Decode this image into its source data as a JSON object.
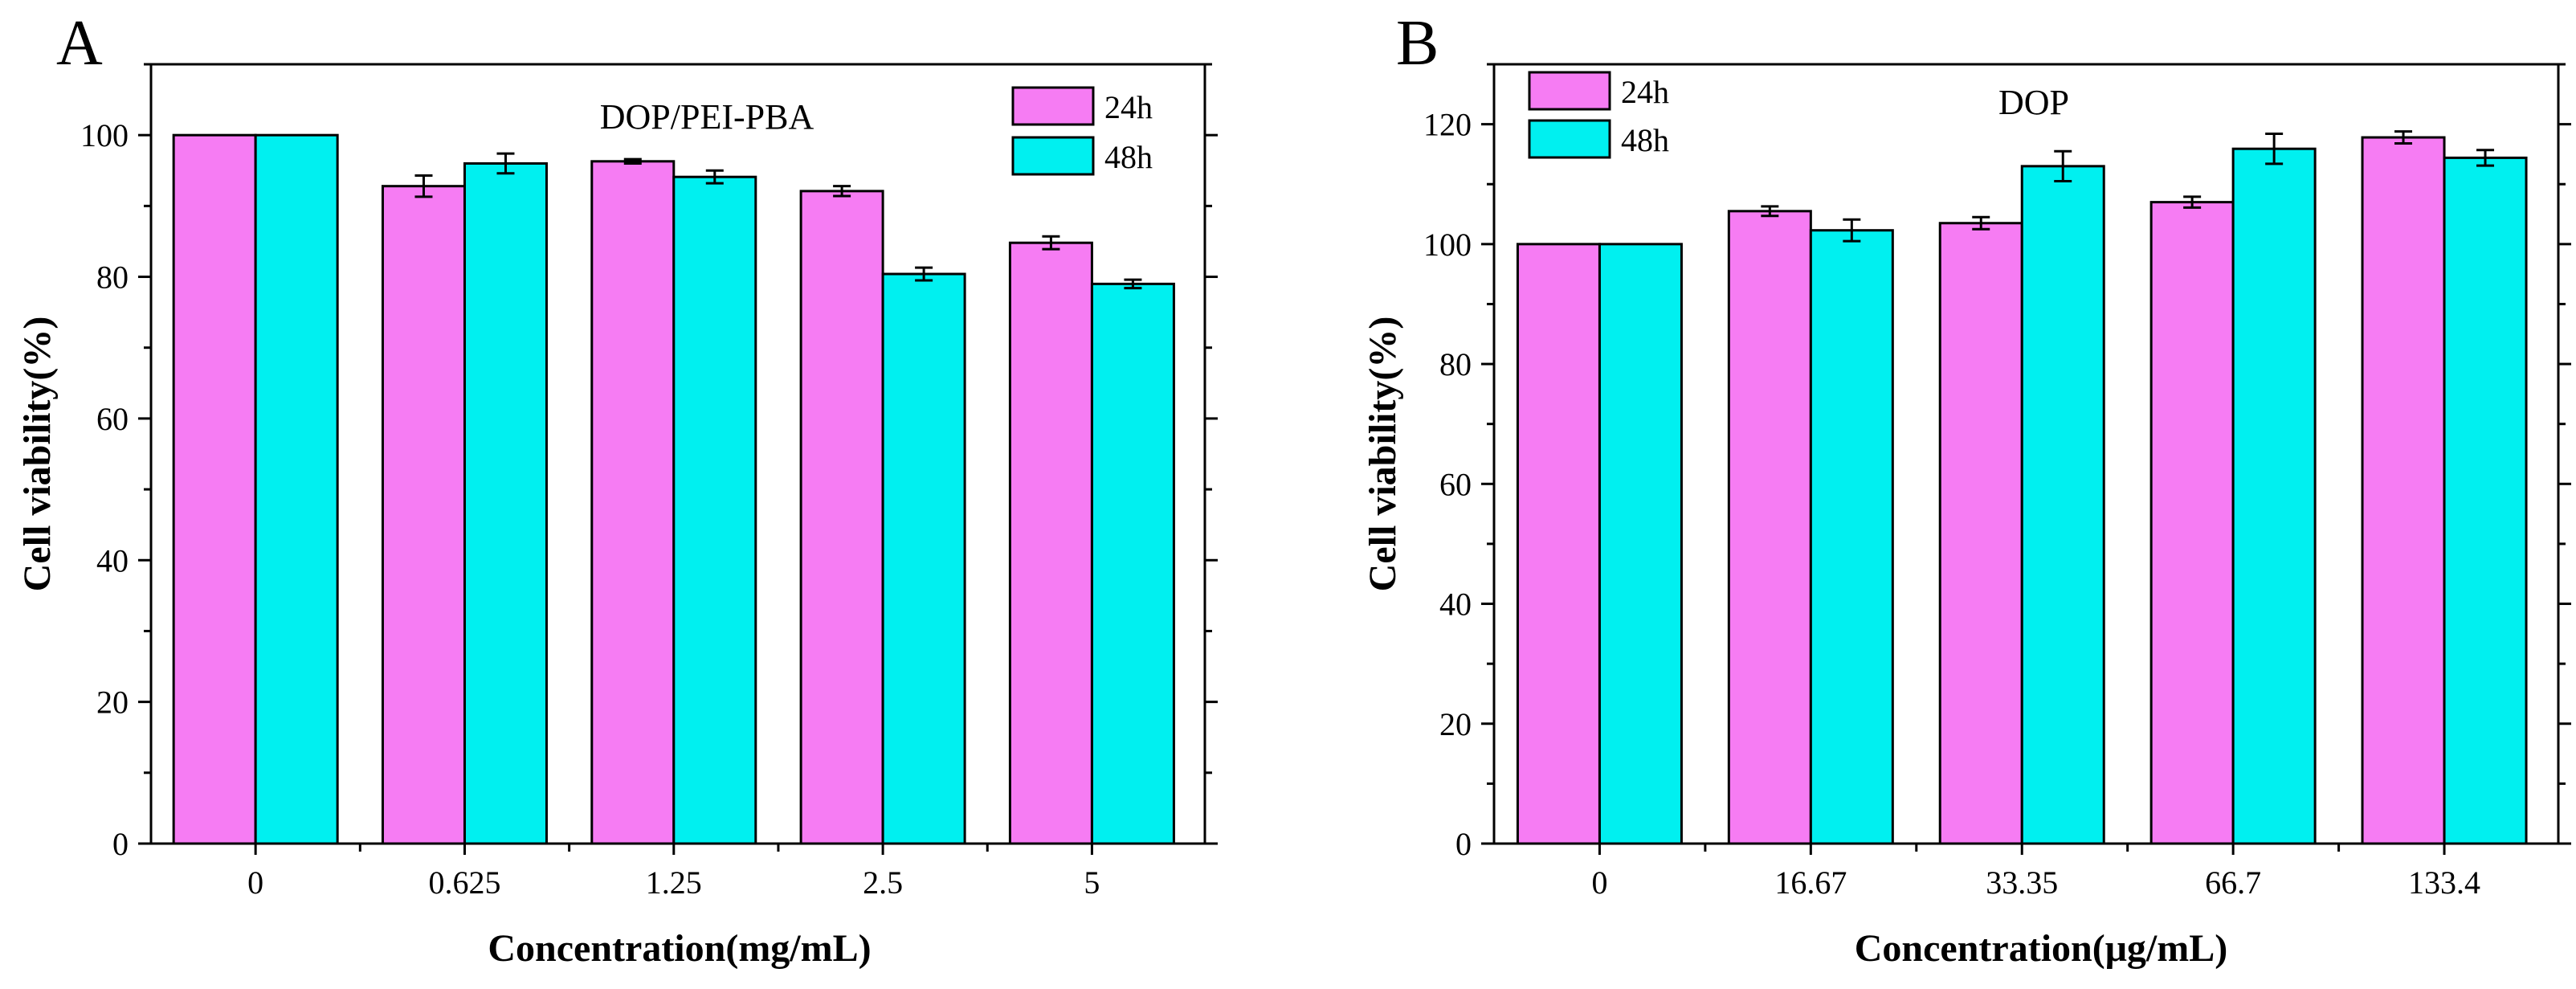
{
  "chart_data": [
    {
      "type": "bar",
      "panel": "A",
      "title": "DOP/PEI-PBA",
      "xlabel": "Concentration(mg/mL)",
      "ylabel": "Cell viability(%)",
      "categories": [
        "0",
        "0.625",
        "1.25",
        "2.5",
        "5"
      ],
      "ylim": [
        0,
        110
      ],
      "yticks": [
        0,
        20,
        40,
        60,
        80,
        100
      ],
      "ytick_labels": [
        "0",
        "20",
        "40",
        "60",
        "80",
        "100"
      ],
      "series": [
        {
          "name": "24h",
          "color": "#F67CF3",
          "values": [
            100,
            92.8,
            96.3,
            92.1,
            84.8
          ],
          "errors": [
            0,
            1.5,
            0.3,
            0.7,
            0.9
          ]
        },
        {
          "name": "48h",
          "color": "#00F0F0",
          "values": [
            100,
            96.0,
            94.1,
            80.4,
            79.0
          ],
          "errors": [
            0,
            1.4,
            0.9,
            0.9,
            0.6
          ]
        }
      ],
      "legend_position": "top-right"
    },
    {
      "type": "bar",
      "panel": "B",
      "title": "DOP",
      "xlabel": "Concentration(μg/mL)",
      "ylabel": "Cell viability(%)",
      "categories": [
        "0",
        "16.67",
        "33.35",
        "66.7",
        "133.4"
      ],
      "ylim": [
        0,
        130
      ],
      "yticks": [
        0,
        20,
        40,
        60,
        80,
        100,
        120
      ],
      "ytick_labels": [
        "0",
        "20",
        "40",
        "60",
        "80",
        "100",
        "120"
      ],
      "series": [
        {
          "name": "24h",
          "color": "#F67CF3",
          "values": [
            100,
            105.5,
            103.5,
            107.0,
            117.8
          ],
          "errors": [
            0,
            0.8,
            1.0,
            0.9,
            1.0
          ]
        },
        {
          "name": "48h",
          "color": "#00F0F0",
          "values": [
            100,
            102.3,
            113.0,
            115.9,
            114.4
          ],
          "errors": [
            0,
            1.8,
            2.5,
            2.5,
            1.3
          ]
        }
      ],
      "legend_position": "top-left"
    }
  ]
}
